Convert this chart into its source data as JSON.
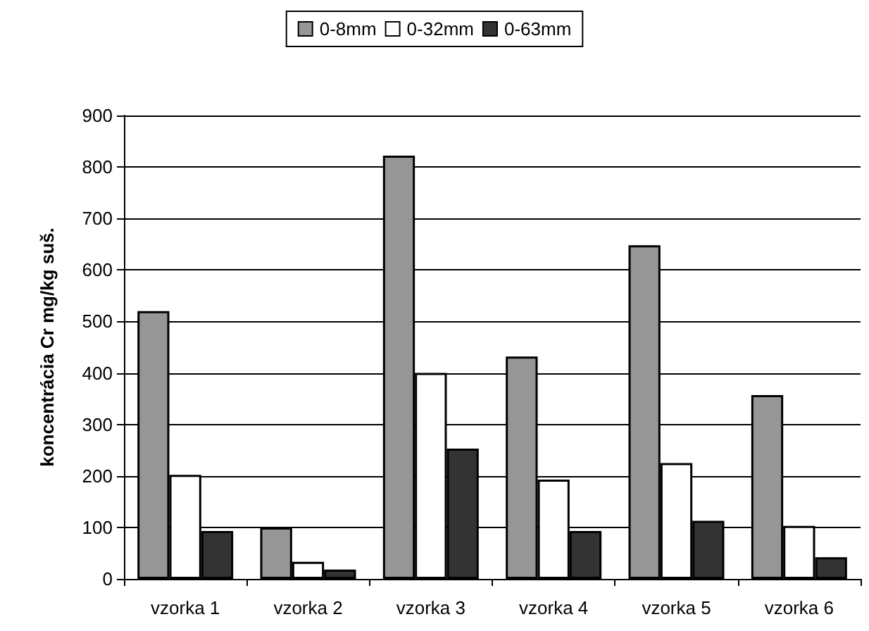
{
  "chart_data": {
    "type": "bar",
    "ylabel": "koncentrácia Cr mg/kg suš.",
    "categories": [
      "vzorka 1",
      "vzorka 2",
      "vzorka 3",
      "vzorka 4",
      "vzorka 5",
      "vzorka 6"
    ],
    "series": [
      {
        "name": "0-8mm",
        "color": "#969696",
        "values": [
          520,
          100,
          822,
          432,
          648,
          357
        ]
      },
      {
        "name": "0-32mm",
        "color": "#ffffff",
        "values": [
          202,
          33,
          400,
          193,
          225,
          103
        ]
      },
      {
        "name": "0-63mm",
        "color": "#333333",
        "values": [
          93,
          18,
          253,
          93,
          113,
          42
        ]
      }
    ],
    "ylim": [
      0,
      900
    ],
    "yticks": [
      0,
      100,
      200,
      300,
      400,
      500,
      600,
      700,
      800,
      900
    ],
    "grid": "y",
    "legend": "top"
  }
}
